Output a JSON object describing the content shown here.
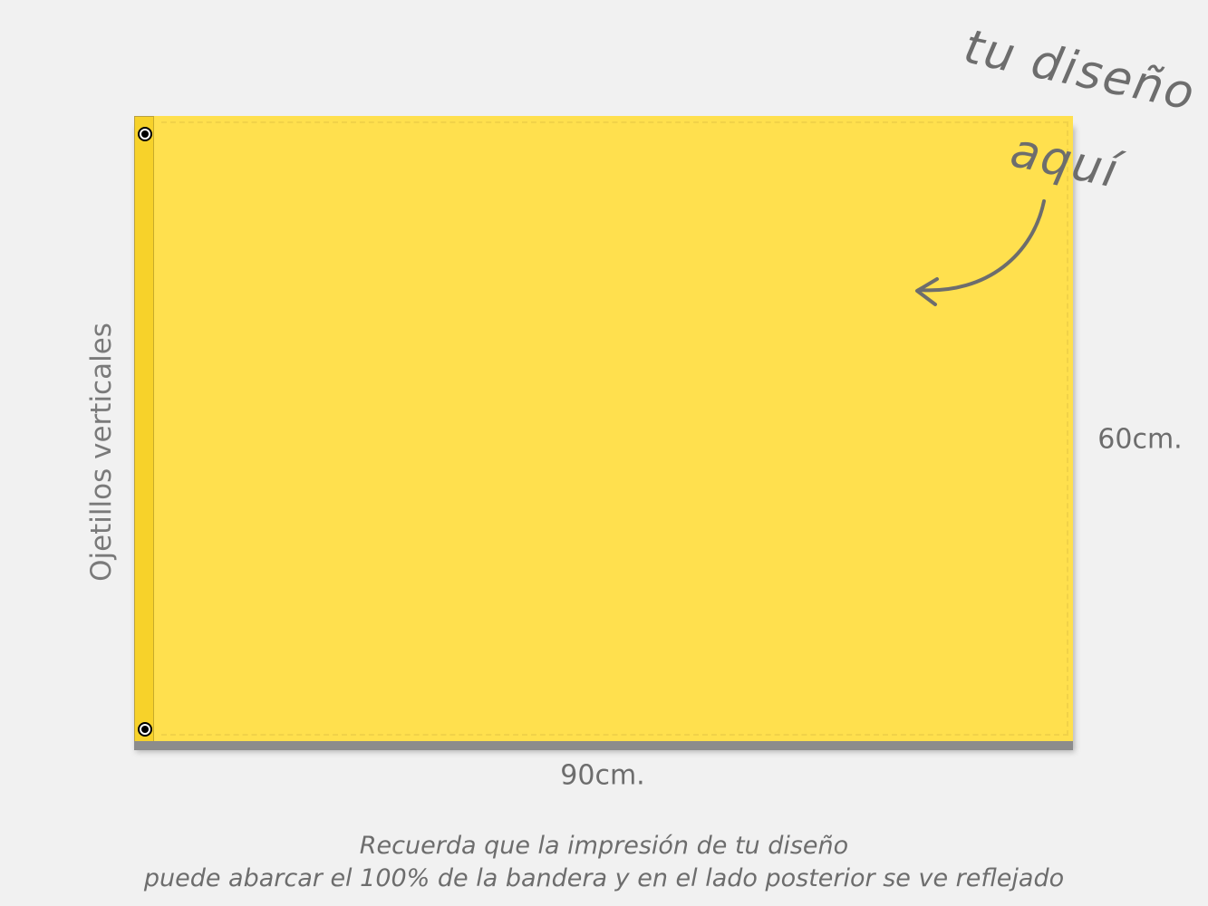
{
  "flag": {
    "color": "#ffe04e",
    "sleeve_color": "#f7d22a",
    "eyelets": 2
  },
  "labels": {
    "eyelets": "Ojetillos verticales",
    "width": "90cm.",
    "height": "60cm."
  },
  "callout": {
    "line1": "tu diseño",
    "line2": "aquí",
    "icon": "curved-arrow-icon"
  },
  "note": {
    "line1": "Recuerda que la impresión de tu diseño",
    "line2": "puede abarcar el 100% de la bandera y en el lado posterior se ve reflejado"
  }
}
